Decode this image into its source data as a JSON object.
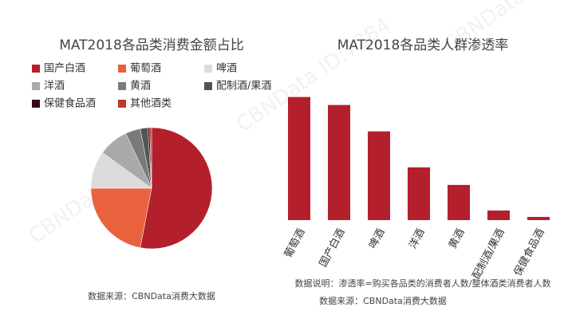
{
  "watermark": "CBNData ID:7384",
  "chart_data": [
    {
      "type": "pie",
      "title": "MAT2018各品类消费金额占比",
      "categories": [
        "国产白酒",
        "葡萄酒",
        "啤酒",
        "洋酒",
        "黄酒",
        "配制酒/果酒",
        "保健食品酒",
        "其他酒类"
      ],
      "values": [
        53,
        22,
        10,
        8,
        4,
        2,
        0.5,
        0.5
      ],
      "colors": [
        "#b3202c",
        "#e8623e",
        "#dcdcdc",
        "#a9a9a9",
        "#7a7a7a",
        "#545454",
        "#3a0a14",
        "#c0392b"
      ],
      "source": "数据来源：CBNData消费大数据"
    },
    {
      "type": "bar",
      "title": "MAT2018各品类人群渗透率",
      "categories": [
        "葡萄酒",
        "国产白酒",
        "啤酒",
        "洋酒",
        "黄酒",
        "配制酒/果酒",
        "保健食品酒"
      ],
      "values": [
        154,
        144,
        111,
        66,
        44,
        12,
        4
      ],
      "color": "#b3202c",
      "note": "数据说明：渗透率=购买各品类的消费者人数/整体酒类消费者人数",
      "source": "数据来源：CBNData消费大数据"
    }
  ]
}
